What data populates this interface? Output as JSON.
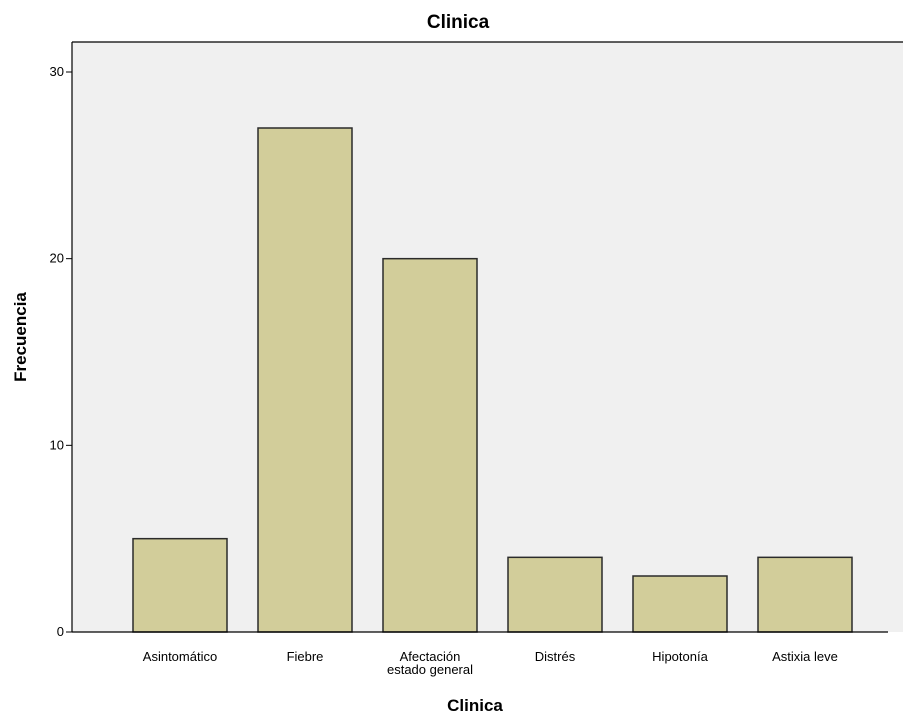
{
  "chart_data": {
    "type": "bar",
    "title": "Clinica",
    "xlabel": "Clinica",
    "ylabel": "Frecuencia",
    "categories": [
      "Asintomático",
      "Fiebre",
      "Afectación estado general",
      "Distrés",
      "Hipotonía",
      "Astixia leve"
    ],
    "values": [
      5,
      27,
      20,
      4,
      3,
      4
    ],
    "ylim": [
      0,
      30
    ],
    "yticks": [
      0,
      10,
      20,
      30
    ],
    "grid": false,
    "legend": "none",
    "colors": {
      "bar_fill": "#d2cd9a",
      "bar_stroke": "#2b2b2b",
      "plot_background": "#f0f0f0",
      "axis": "#000000"
    }
  }
}
